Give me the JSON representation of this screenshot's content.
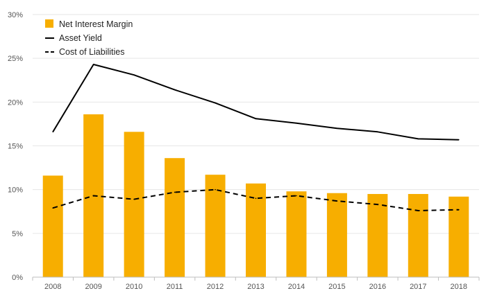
{
  "colors": {
    "bar": "#F7AE00",
    "line": "#000000",
    "grid": "#e6e6e6",
    "axis": "#bdbdbd",
    "text": "#555555"
  },
  "legend": {
    "items": [
      {
        "label": "Net Interest Margin",
        "kind": "bar"
      },
      {
        "label": "Asset Yield",
        "kind": "solid-line"
      },
      {
        "label": "Cost of Liabilities",
        "kind": "dashed-line"
      }
    ]
  },
  "chart_data": {
    "type": "bar",
    "title": "",
    "xlabel": "",
    "ylabel": "",
    "categories": [
      "2008",
      "2009",
      "2010",
      "2011",
      "2012",
      "2013",
      "2014",
      "2015",
      "2016",
      "2017",
      "2018"
    ],
    "series": [
      {
        "name": "Net Interest Margin",
        "type": "bar",
        "values": [
          11.6,
          18.6,
          16.6,
          13.6,
          11.7,
          10.7,
          9.8,
          9.6,
          9.5,
          9.5,
          9.2
        ]
      },
      {
        "name": "Asset Yield",
        "type": "line",
        "style": "solid",
        "values": [
          16.6,
          24.3,
          23.1,
          21.4,
          19.9,
          18.1,
          17.6,
          17.0,
          16.6,
          15.8,
          15.7
        ]
      },
      {
        "name": "Cost of Liabilities",
        "type": "line",
        "style": "dashed",
        "values": [
          7.9,
          9.3,
          8.9,
          9.7,
          10.0,
          9.0,
          9.3,
          8.7,
          8.3,
          7.6,
          7.7
        ]
      }
    ],
    "ylim": [
      0,
      30
    ],
    "yticks": [
      0,
      5,
      10,
      15,
      20,
      25,
      30
    ],
    "ytick_labels": [
      "0%",
      "5%",
      "10%",
      "15%",
      "20%",
      "25%",
      "30%"
    ],
    "grid": true,
    "legend_position": "top-left"
  }
}
